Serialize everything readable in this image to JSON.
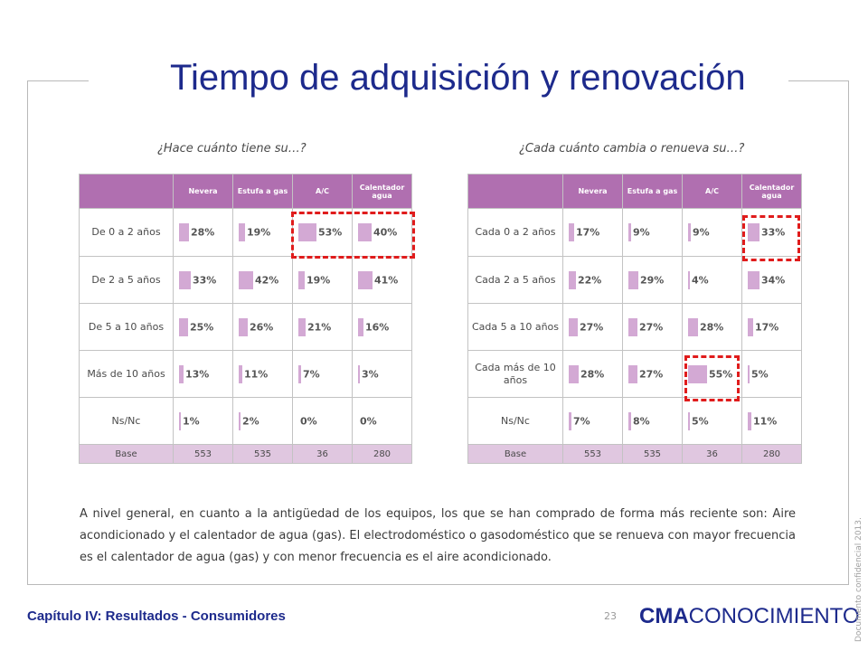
{
  "title": "Tiempo de adquisición y renovación",
  "left_panel": {
    "question": "¿Hace cuánto tiene su…?",
    "columns": [
      "Nevera",
      "Estufa a gas",
      "A/C",
      "Calentador agua"
    ],
    "rows": [
      {
        "label": "De 0 a 2 años",
        "values": [
          "28%",
          "19%",
          "53%",
          "40%"
        ]
      },
      {
        "label": "De 2 a 5 años",
        "values": [
          "33%",
          "42%",
          "19%",
          "41%"
        ]
      },
      {
        "label": "De 5 a 10 años",
        "values": [
          "25%",
          "26%",
          "21%",
          "16%"
        ]
      },
      {
        "label": "Más de 10 años",
        "values": [
          "13%",
          "11%",
          "7%",
          "3%"
        ]
      },
      {
        "label": "Ns/Nc",
        "values": [
          "1%",
          "2%",
          "0%",
          "0%"
        ]
      }
    ],
    "base": {
      "label": "Base",
      "values": [
        "553",
        "535",
        "36",
        "280"
      ]
    },
    "highlighted": "row 1, columns A/C and Calentador agua"
  },
  "right_panel": {
    "question": "¿Cada cuánto cambia o renueva su…?",
    "columns": [
      "Nevera",
      "Estufa a gas",
      "A/C",
      "Calentador agua"
    ],
    "rows": [
      {
        "label": "Cada 0 a 2 años",
        "values": [
          "17%",
          "9%",
          "9%",
          "33%"
        ]
      },
      {
        "label": "Cada 2 a 5 años",
        "values": [
          "22%",
          "29%",
          "4%",
          "34%"
        ]
      },
      {
        "label": "Cada 5 a 10 años",
        "values": [
          "27%",
          "27%",
          "28%",
          "17%"
        ]
      },
      {
        "label": "Cada más de 10 años",
        "values": [
          "28%",
          "27%",
          "55%",
          "5%"
        ]
      },
      {
        "label": "Ns/Nc",
        "values": [
          "7%",
          "8%",
          "5%",
          "11%"
        ]
      }
    ],
    "base": {
      "label": "Base",
      "values": [
        "553",
        "535",
        "36",
        "280"
      ]
    },
    "highlighted": "Calentador agua / Cada 0 a 2 años and A/C / Cada más de 10 años"
  },
  "summary": "A nivel general, en cuanto a la antigüedad de los equipos, los que se han comprado de forma más reciente son: Aire acondicionado y el calentador de agua (gas). El electrodoméstico o gasodoméstico que se renueva con mayor frecuencia es el calentador de agua (gas) y con menor frecuencia es el aire acondicionado.",
  "footer": {
    "chapter": "Capítulo IV: Resultados - Consumidores",
    "page": "23",
    "logo_bold": "CMA",
    "logo_light": "CONOCIMIENTO",
    "confidential": "Documento confidencial 2013."
  },
  "colors": {
    "title": "#1d2a8c",
    "header": "#b06fb0",
    "bar": "#d3a9d4",
    "base_row": "#e0c7e0",
    "highlight": "#e01c1c"
  }
}
